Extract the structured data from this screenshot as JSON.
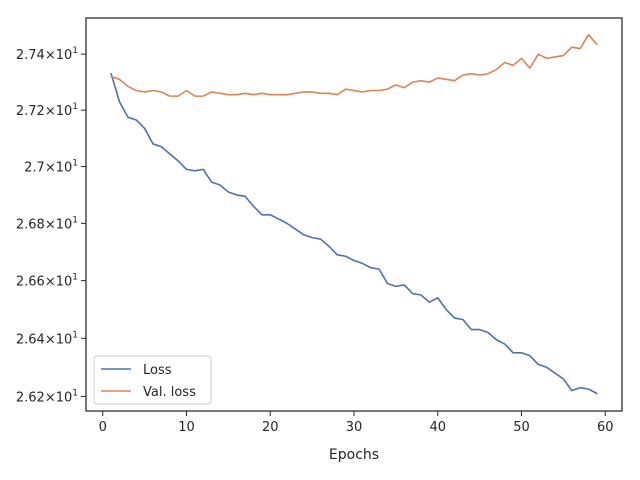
{
  "chart_data": {
    "type": "line",
    "title": "",
    "xlabel": "Epochs",
    "ylabel": "",
    "xlim": [
      -2,
      62
    ],
    "ylim": [
      26.15,
      27.53
    ],
    "yscale": "log",
    "grid": false,
    "legend_position": "lower-left",
    "x_ticks": [
      0,
      10,
      20,
      30,
      40,
      50,
      60
    ],
    "x_tick_labels": [
      "0",
      "10",
      "20",
      "30",
      "40",
      "50",
      "60"
    ],
    "y_ticks": [
      26.2,
      26.4,
      26.6,
      26.8,
      27.0,
      27.2,
      27.4
    ],
    "y_tick_labels": [
      {
        "mant": "2.62",
        "exp": "1"
      },
      {
        "mant": "2.64",
        "exp": "1"
      },
      {
        "mant": "2.66",
        "exp": "1"
      },
      {
        "mant": "2.68",
        "exp": "1"
      },
      {
        "mant": "2.7",
        "exp": "1"
      },
      {
        "mant": "2.72",
        "exp": "1"
      },
      {
        "mant": "2.74",
        "exp": "1"
      }
    ],
    "x": [
      1,
      2,
      3,
      4,
      5,
      6,
      7,
      8,
      9,
      10,
      11,
      12,
      13,
      14,
      15,
      16,
      17,
      18,
      19,
      20,
      21,
      22,
      23,
      24,
      25,
      26,
      27,
      28,
      29,
      30,
      31,
      32,
      33,
      34,
      35,
      36,
      37,
      38,
      39,
      40,
      41,
      42,
      43,
      44,
      45,
      46,
      47,
      48,
      49,
      50,
      51,
      52,
      53,
      54,
      55,
      56,
      57,
      58,
      59
    ],
    "series": [
      {
        "name": "Loss",
        "color": "#4c72b0",
        "values": [
          27.33,
          27.23,
          27.175,
          27.165,
          27.135,
          27.08,
          27.07,
          27.045,
          27.02,
          26.99,
          26.985,
          26.99,
          26.945,
          26.935,
          26.91,
          26.9,
          26.895,
          26.86,
          26.83,
          26.83,
          26.815,
          26.8,
          26.78,
          26.76,
          26.75,
          26.745,
          26.72,
          26.69,
          26.685,
          26.67,
          26.66,
          26.645,
          26.64,
          26.59,
          26.58,
          26.585,
          26.555,
          26.55,
          26.525,
          26.54,
          26.5,
          26.47,
          26.465,
          26.43,
          26.43,
          26.42,
          26.395,
          26.38,
          26.35,
          26.35,
          26.34,
          26.31,
          26.3,
          26.28,
          26.26,
          26.22,
          26.23,
          26.225,
          26.21
        ]
      },
      {
        "name": "Val. loss",
        "color": "#dd8452",
        "values": [
          27.32,
          27.31,
          27.285,
          27.27,
          27.265,
          27.27,
          27.265,
          27.25,
          27.25,
          27.27,
          27.25,
          27.25,
          27.265,
          27.26,
          27.255,
          27.255,
          27.26,
          27.255,
          27.26,
          27.255,
          27.255,
          27.255,
          27.26,
          27.265,
          27.265,
          27.26,
          27.26,
          27.255,
          27.275,
          27.27,
          27.265,
          27.27,
          27.27,
          27.275,
          27.29,
          27.28,
          27.3,
          27.305,
          27.3,
          27.315,
          27.31,
          27.305,
          27.325,
          27.33,
          27.325,
          27.33,
          27.345,
          27.37,
          27.36,
          27.385,
          27.35,
          27.4,
          27.385,
          27.39,
          27.395,
          27.425,
          27.42,
          27.47,
          27.435
        ]
      }
    ]
  }
}
